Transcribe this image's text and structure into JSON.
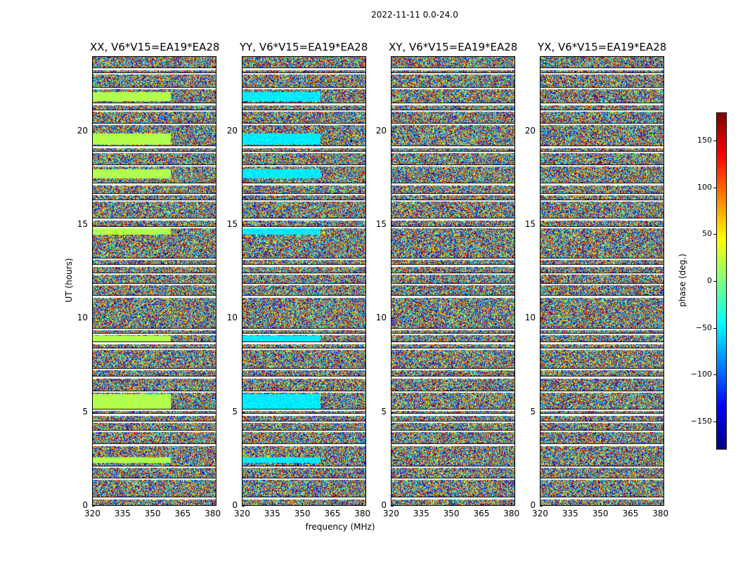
{
  "suptitle": "2022-11-11 0.0-24.0",
  "chart_data": {
    "type": "heatmap",
    "panels": [
      {
        "title": "XX, V6*V15=EA19*EA28",
        "key": "XX"
      },
      {
        "title": "YY, V6*V15=EA19*EA28",
        "key": "YY"
      },
      {
        "title": "XY, V6*V15=EA19*EA28",
        "key": "XY"
      },
      {
        "title": "YX, V6*V15=EA19*EA28",
        "key": "YX"
      }
    ],
    "xlabel": "frequency (MHz)",
    "ylabel": "UT (hours)",
    "xlim": [
      320,
      382
    ],
    "ylim": [
      0,
      24
    ],
    "xticks": [
      "320",
      "335",
      "350",
      "365",
      "380"
    ],
    "yticks": [
      "0",
      "5",
      "10",
      "15",
      "20"
    ],
    "colorbar": {
      "label": "phase (deg.)",
      "range": [
        -180,
        180
      ],
      "ticks": [
        "150",
        "100",
        "50",
        "0",
        "−50",
        "−100",
        "−150"
      ],
      "colormap": "jet"
    },
    "flagged_gaps_ut": [
      0.45,
      1.45,
      2.1,
      3.3,
      4.0,
      4.5,
      4.9,
      5.15,
      6.1,
      6.9,
      7.3,
      8.4,
      8.75,
      9.2,
      9.45,
      11.2,
      11.85,
      12.4,
      12.85,
      13.2,
      14.9,
      15.35,
      16.3,
      16.65,
      17.2,
      18.2,
      18.9,
      19.2,
      20.4,
      21.1,
      21.5,
      22.3,
      23.1,
      23.35
    ]
  }
}
